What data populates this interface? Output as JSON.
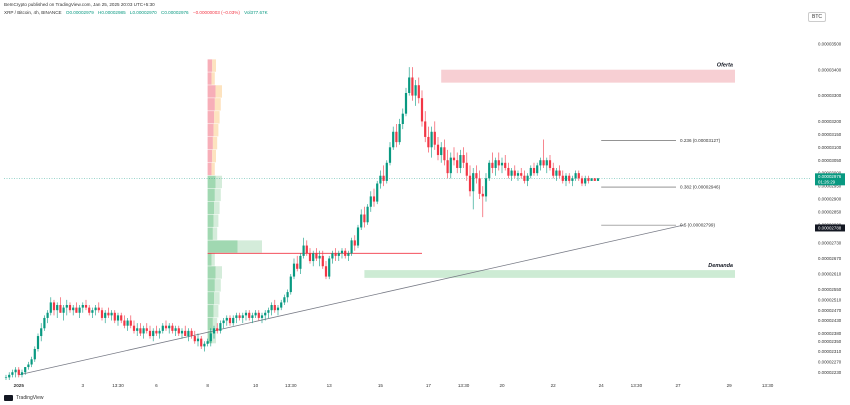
{
  "header": {
    "line1": "BeInCrypto published on TradingView.com, Jan 25, 2025 20:03 UTC+5:30",
    "symbol": "XRP / Bitcoin, 4h, BINANCE",
    "open": "O0.00002979",
    "high": "H0.00002985",
    "low": "L0.00002970",
    "close": "C0.00002976",
    "change": "−0.00000003 (−0.03%)",
    "vol": "Vol377.67K",
    "currency": "BTC"
  },
  "branding": {
    "logo_text": "TradingView"
  },
  "colors": {
    "up": "#089981",
    "down": "#f23645",
    "supply": "#f7cfd3",
    "demand": "#cdebd4",
    "trend": "#787b86"
  },
  "chart_data": {
    "type": "candlestick",
    "title": "XRP / Bitcoin, 4h, BINANCE",
    "yrange": [
      2.2e-05,
      3.6e-05
    ],
    "y_ticks": [
      "0.00003500",
      "0.00003400",
      "0.00003300",
      "0.00003200",
      "0.00003150",
      "0.00003100",
      "0.00003050",
      "0.00003000",
      "0.00002950",
      "0.00002900",
      "0.00002850",
      "0.00002800",
      "0.00002730",
      "0.00002670",
      "0.00002610",
      "0.00002550",
      "0.00002510",
      "0.00002470",
      "0.00002430",
      "0.00002380",
      "0.00002350",
      "0.00002310",
      "0.00002270",
      "0.00002230"
    ],
    "x_ticks": [
      {
        "label": "2025",
        "i": 4
      },
      {
        "label": "3",
        "i": 24
      },
      {
        "label": "13:30",
        "i": 35
      },
      {
        "label": "6",
        "i": 47
      },
      {
        "label": "8",
        "i": 63
      },
      {
        "label": "10",
        "i": 78
      },
      {
        "label": "13:30",
        "i": 89
      },
      {
        "label": "13",
        "i": 101
      },
      {
        "label": "15",
        "i": 117
      },
      {
        "label": "17",
        "i": 132
      },
      {
        "label": "13:30",
        "i": 143
      },
      {
        "label": "20",
        "i": 155
      },
      {
        "label": "22",
        "i": 171
      },
      {
        "label": "24",
        "i": 186
      },
      {
        "label": "13:30",
        "i": 197
      },
      {
        "label": "27",
        "i": 210
      },
      {
        "label": "29",
        "i": 226
      },
      {
        "label": "13:30",
        "i": 238
      }
    ],
    "price_labels": {
      "last": "0.00002976",
      "countdown": "01:26:29",
      "other": "0.00002788"
    },
    "fib_levels": [
      {
        "label": "0.236 (0.00003127)",
        "value": 3.127e-05
      },
      {
        "label": "0.382 (0.00002946)",
        "value": 2.946e-05
      },
      {
        "label": "0.5 (0.00002799)",
        "value": 2.799e-05
      }
    ],
    "zones": [
      {
        "label": "Oferta",
        "top": 3.4e-05,
        "bottom": 3.35e-05
      },
      {
        "label": "Demanda",
        "top": 2.625e-05,
        "bottom": 2.595e-05
      }
    ],
    "trendline": {
      "from": {
        "i": 4,
        "v": 2.22e-05
      },
      "to": {
        "i": 212,
        "v": 2.8e-05
      }
    },
    "poc": {
      "v": 2.69e-05,
      "from_i": 63,
      "to_i": 130
    },
    "candles": [
      [
        2.21e-05,
        2.22e-05,
        2.2e-05,
        2.21e-05
      ],
      [
        2.21e-05,
        2.23e-05,
        2.2e-05,
        2.22e-05
      ],
      [
        2.22e-05,
        2.24e-05,
        2.21e-05,
        2.23e-05
      ],
      [
        2.23e-05,
        2.25e-05,
        2.21e-05,
        2.24e-05
      ],
      [
        2.24e-05,
        2.25e-05,
        2.21e-05,
        2.22e-05
      ],
      [
        2.22e-05,
        2.24e-05,
        2.21e-05,
        2.23e-05
      ],
      [
        2.23e-05,
        2.25e-05,
        2.22e-05,
        2.25e-05
      ],
      [
        2.25e-05,
        2.27e-05,
        2.24e-05,
        2.26e-05
      ],
      [
        2.26e-05,
        2.29e-05,
        2.25e-05,
        2.28e-05
      ],
      [
        2.28e-05,
        2.33e-05,
        2.27e-05,
        2.32e-05
      ],
      [
        2.32e-05,
        2.38e-05,
        2.31e-05,
        2.37e-05
      ],
      [
        2.37e-05,
        2.42e-05,
        2.35e-05,
        2.4e-05
      ],
      [
        2.4e-05,
        2.45e-05,
        2.39e-05,
        2.44e-05
      ],
      [
        2.44e-05,
        2.47e-05,
        2.42e-05,
        2.46e-05
      ],
      [
        2.46e-05,
        2.52e-05,
        2.45e-05,
        2.5e-05
      ],
      [
        2.5e-05,
        2.51e-05,
        2.45e-05,
        2.47e-05
      ],
      [
        2.47e-05,
        2.5e-05,
        2.44e-05,
        2.49e-05
      ],
      [
        2.49e-05,
        2.52e-05,
        2.46e-05,
        2.46e-05
      ],
      [
        2.46e-05,
        2.49e-05,
        2.43e-05,
        2.48e-05
      ],
      [
        2.48e-05,
        2.51e-05,
        2.45e-05,
        2.49e-05
      ],
      [
        2.49e-05,
        2.5e-05,
        2.46e-05,
        2.47e-05
      ],
      [
        2.47e-05,
        2.49e-05,
        2.45e-05,
        2.48e-05
      ],
      [
        2.48e-05,
        2.5e-05,
        2.46e-05,
        2.46e-05
      ],
      [
        2.46e-05,
        2.49e-05,
        2.44e-05,
        2.48e-05
      ],
      [
        2.48e-05,
        2.5e-05,
        2.46e-05,
        2.49e-05
      ],
      [
        2.49e-05,
        2.51e-05,
        2.47e-05,
        2.48e-05
      ],
      [
        2.48e-05,
        2.49e-05,
        2.45e-05,
        2.46e-05
      ],
      [
        2.46e-05,
        2.48e-05,
        2.44e-05,
        2.47e-05
      ],
      [
        2.47e-05,
        2.49e-05,
        2.45e-05,
        2.48e-05
      ],
      [
        2.48e-05,
        2.5e-05,
        2.46e-05,
        2.47e-05
      ],
      [
        2.47e-05,
        2.48e-05,
        2.43e-05,
        2.44e-05
      ],
      [
        2.44e-05,
        2.47e-05,
        2.42e-05,
        2.46e-05
      ],
      [
        2.46e-05,
        2.48e-05,
        2.44e-05,
        2.45e-05
      ],
      [
        2.45e-05,
        2.47e-05,
        2.43e-05,
        2.46e-05
      ],
      [
        2.46e-05,
        2.47e-05,
        2.42e-05,
        2.43e-05
      ],
      [
        2.43e-05,
        2.46e-05,
        2.41e-05,
        2.45e-05
      ],
      [
        2.45e-05,
        2.46e-05,
        2.42e-05,
        2.43e-05
      ],
      [
        2.43e-05,
        2.45e-05,
        2.4e-05,
        2.41e-05
      ],
      [
        2.41e-05,
        2.44e-05,
        2.39e-05,
        2.43e-05
      ],
      [
        2.43e-05,
        2.45e-05,
        2.4e-05,
        2.41e-05
      ],
      [
        2.41e-05,
        2.43e-05,
        2.38e-05,
        2.39e-05
      ],
      [
        2.39e-05,
        2.42e-05,
        2.37e-05,
        2.4e-05
      ],
      [
        2.4e-05,
        2.42e-05,
        2.37e-05,
        2.38e-05
      ],
      [
        2.38e-05,
        2.41e-05,
        2.36e-05,
        2.4e-05
      ],
      [
        2.4e-05,
        2.42e-05,
        2.38e-05,
        2.39e-05
      ],
      [
        2.39e-05,
        2.41e-05,
        2.36e-05,
        2.37e-05
      ],
      [
        2.37e-05,
        2.4e-05,
        2.35e-05,
        2.39e-05
      ],
      [
        2.39e-05,
        2.41e-05,
        2.37e-05,
        2.38e-05
      ],
      [
        2.38e-05,
        2.4e-05,
        2.36e-05,
        2.39e-05
      ],
      [
        2.39e-05,
        2.42e-05,
        2.38e-05,
        2.41e-05
      ],
      [
        2.41e-05,
        2.43e-05,
        2.39e-05,
        2.4e-05
      ],
      [
        2.4e-05,
        2.42e-05,
        2.38e-05,
        2.41e-05
      ],
      [
        2.41e-05,
        2.42e-05,
        2.38e-05,
        2.39e-05
      ],
      [
        2.39e-05,
        2.41e-05,
        2.37e-05,
        2.4e-05
      ],
      [
        2.4e-05,
        2.41e-05,
        2.37e-05,
        2.38e-05
      ],
      [
        2.38e-05,
        2.4e-05,
        2.36e-05,
        2.39e-05
      ],
      [
        2.39e-05,
        2.41e-05,
        2.37e-05,
        2.37e-05
      ],
      [
        2.37e-05,
        2.4e-05,
        2.35e-05,
        2.39e-05
      ],
      [
        2.39e-05,
        2.4e-05,
        2.36e-05,
        2.37e-05
      ],
      [
        2.37e-05,
        2.39e-05,
        2.34e-05,
        2.35e-05
      ],
      [
        2.35e-05,
        2.38e-05,
        2.33e-05,
        2.36e-05
      ],
      [
        2.36e-05,
        2.37e-05,
        2.32e-05,
        2.33e-05
      ],
      [
        2.33e-05,
        2.35e-05,
        2.31e-05,
        2.34e-05
      ],
      [
        2.34e-05,
        2.36e-05,
        2.33e-05,
        2.35e-05
      ],
      [
        2.35e-05,
        2.4e-05,
        2.33e-05,
        2.38e-05
      ],
      [
        2.38e-05,
        2.41e-05,
        2.36e-05,
        2.4e-05
      ],
      [
        2.4e-05,
        2.42e-05,
        2.38e-05,
        2.39e-05
      ],
      [
        2.39e-05,
        2.43e-05,
        2.38e-05,
        2.42e-05
      ],
      [
        2.42e-05,
        2.44e-05,
        2.4e-05,
        2.43e-05
      ],
      [
        2.43e-05,
        2.45e-05,
        2.41e-05,
        2.44e-05
      ],
      [
        2.44e-05,
        2.45e-05,
        2.41e-05,
        2.42e-05
      ],
      [
        2.42e-05,
        2.45e-05,
        2.41e-05,
        2.44e-05
      ],
      [
        2.44e-05,
        2.46e-05,
        2.42e-05,
        2.45e-05
      ],
      [
        2.45e-05,
        2.46e-05,
        2.43e-05,
        2.44e-05
      ],
      [
        2.44e-05,
        2.46e-05,
        2.42e-05,
        2.45e-05
      ],
      [
        2.45e-05,
        2.47e-05,
        2.43e-05,
        2.46e-05
      ],
      [
        2.46e-05,
        2.47e-05,
        2.43e-05,
        2.44e-05
      ],
      [
        2.44e-05,
        2.46e-05,
        2.42e-05,
        2.45e-05
      ],
      [
        2.45e-05,
        2.47e-05,
        2.44e-05,
        2.46e-05
      ],
      [
        2.46e-05,
        2.47e-05,
        2.43e-05,
        2.44e-05
      ],
      [
        2.44e-05,
        2.46e-05,
        2.42e-05,
        2.45e-05
      ],
      [
        2.45e-05,
        2.47e-05,
        2.43e-05,
        2.46e-05
      ],
      [
        2.46e-05,
        2.48e-05,
        2.44e-05,
        2.47e-05
      ],
      [
        2.47e-05,
        2.5e-05,
        2.45e-05,
        2.49e-05
      ],
      [
        2.49e-05,
        2.51e-05,
        2.46e-05,
        2.47e-05
      ],
      [
        2.47e-05,
        2.49e-05,
        2.45e-05,
        2.48e-05
      ],
      [
        2.48e-05,
        2.51e-05,
        2.47e-05,
        2.5e-05
      ],
      [
        2.5e-05,
        2.53e-05,
        2.49e-05,
        2.52e-05
      ],
      [
        2.52e-05,
        2.55e-05,
        2.5e-05,
        2.54e-05
      ],
      [
        2.54e-05,
        2.61e-05,
        2.53e-05,
        2.6e-05
      ],
      [
        2.6e-05,
        2.67e-05,
        2.59e-05,
        2.65e-05
      ],
      [
        2.65e-05,
        2.68e-05,
        2.62e-05,
        2.63e-05
      ],
      [
        2.63e-05,
        2.69e-05,
        2.61e-05,
        2.68e-05
      ],
      [
        2.68e-05,
        2.75e-05,
        2.67e-05,
        2.72e-05
      ],
      [
        2.72e-05,
        2.74e-05,
        2.68e-05,
        2.69e-05
      ],
      [
        2.69e-05,
        2.71e-05,
        2.65e-05,
        2.66e-05
      ],
      [
        2.66e-05,
        2.7e-05,
        2.64e-05,
        2.69e-05
      ],
      [
        2.69e-05,
        2.71e-05,
        2.66e-05,
        2.67e-05
      ],
      [
        2.67e-05,
        2.7e-05,
        2.64e-05,
        2.68e-05
      ],
      [
        2.68e-05,
        2.7e-05,
        2.63e-05,
        2.64e-05
      ],
      [
        2.64e-05,
        2.66e-05,
        2.59e-05,
        2.6e-05
      ],
      [
        2.6e-05,
        2.68e-05,
        2.59e-05,
        2.67e-05
      ],
      [
        2.67e-05,
        2.7e-05,
        2.65e-05,
        2.69e-05
      ],
      [
        2.69e-05,
        2.71e-05,
        2.66e-05,
        2.68e-05
      ],
      [
        2.68e-05,
        2.7e-05,
        2.66e-05,
        2.69e-05
      ],
      [
        2.69e-05,
        2.71e-05,
        2.67e-05,
        2.7e-05
      ],
      [
        2.7e-05,
        2.71e-05,
        2.67e-05,
        2.68e-05
      ],
      [
        2.68e-05,
        2.7e-05,
        2.66e-05,
        2.69e-05
      ],
      [
        2.69e-05,
        2.75e-05,
        2.68e-05,
        2.74e-05
      ],
      [
        2.74e-05,
        2.76e-05,
        2.7e-05,
        2.72e-05
      ],
      [
        2.72e-05,
        2.8e-05,
        2.71e-05,
        2.79e-05
      ],
      [
        2.79e-05,
        2.86e-05,
        2.78e-05,
        2.84e-05
      ],
      [
        2.84e-05,
        2.87e-05,
        2.79e-05,
        2.81e-05
      ],
      [
        2.81e-05,
        2.88e-05,
        2.8e-05,
        2.87e-05
      ],
      [
        2.87e-05,
        2.93e-05,
        2.85e-05,
        2.91e-05
      ],
      [
        2.91e-05,
        2.94e-05,
        2.87e-05,
        2.89e-05
      ],
      [
        2.89e-05,
        2.97e-05,
        2.88e-05,
        2.96e-05
      ],
      [
        2.96e-05,
        3.01e-05,
        2.94e-05,
        2.99e-05
      ],
      [
        2.99e-05,
        3.03e-05,
        2.95e-05,
        2.97e-05
      ],
      [
        2.97e-05,
        3.05e-05,
        2.96e-05,
        3.04e-05
      ],
      [
        3.04e-05,
        3.12e-05,
        3.03e-05,
        3.1e-05
      ],
      [
        3.1e-05,
        3.18e-05,
        3.09e-05,
        3.16e-05
      ],
      [
        3.16e-05,
        3.19e-05,
        3.1e-05,
        3.12e-05
      ],
      [
        3.12e-05,
        3.21e-05,
        3.11e-05,
        3.19e-05
      ],
      [
        3.19e-05,
        3.25e-05,
        3.17e-05,
        3.23e-05
      ],
      [
        3.23e-05,
        3.33e-05,
        3.22e-05,
        3.31e-05
      ],
      [
        3.31e-05,
        3.41e-05,
        3.3e-05,
        3.37e-05
      ],
      [
        3.37e-05,
        3.41e-05,
        3.28e-05,
        3.3e-05
      ],
      [
        3.3e-05,
        3.36e-05,
        3.26e-05,
        3.34e-05
      ],
      [
        3.34e-05,
        3.37e-05,
        3.27e-05,
        3.29e-05
      ],
      [
        3.29e-05,
        3.32e-05,
        3.18e-05,
        3.2e-05
      ],
      [
        3.2e-05,
        3.24e-05,
        3.12e-05,
        3.14e-05
      ],
      [
        3.14e-05,
        3.18e-05,
        3.08e-05,
        3.1e-05
      ],
      [
        3.1e-05,
        3.18e-05,
        3.06e-05,
        3.16e-05
      ],
      [
        3.16e-05,
        3.2e-05,
        3.09e-05,
        3.11e-05
      ],
      [
        3.11e-05,
        3.14e-05,
        3.05e-05,
        3.07e-05
      ],
      [
        3.07e-05,
        3.12e-05,
        3.04e-05,
        3.1e-05
      ],
      [
        3.1e-05,
        3.13e-05,
        3.03e-05,
        3.05e-05
      ],
      [
        3.05e-05,
        3.09e-05,
        2.98e-05,
        3e-05
      ],
      [
        3e-05,
        3.08e-05,
        2.98e-05,
        3.06e-05
      ],
      [
        3.06e-05,
        3.1e-05,
        3.03e-05,
        3.05e-05
      ],
      [
        3.05e-05,
        3.08e-05,
        3e-05,
        3.02e-05
      ],
      [
        3.02e-05,
        3.09e-05,
        3e-05,
        3.07e-05
      ],
      [
        3.07e-05,
        3.1e-05,
        3.02e-05,
        3.04e-05
      ],
      [
        3.04e-05,
        3.08e-05,
        2.97e-05,
        2.99e-05
      ],
      [
        2.99e-05,
        3.03e-05,
        2.91e-05,
        2.93e-05
      ],
      [
        2.93e-05,
        3.02e-05,
        2.86e-05,
        3e-05
      ],
      [
        3e-05,
        3.03e-05,
        2.96e-05,
        2.98e-05
      ],
      [
        2.98e-05,
        3.01e-05,
        2.9e-05,
        2.92e-05
      ],
      [
        2.92e-05,
        2.95e-05,
        2.83e-05,
        2.91e-05
      ],
      [
        2.91e-05,
        3e-05,
        2.89e-05,
        2.98e-05
      ],
      [
        2.98e-05,
        3.05e-05,
        2.97e-05,
        3.04e-05
      ],
      [
        3.04e-05,
        3.08e-05,
        3e-05,
        3.02e-05
      ],
      [
        3.02e-05,
        3.06e-05,
        2.99e-05,
        3.05e-05
      ],
      [
        3.05e-05,
        3.08e-05,
        3.01e-05,
        3.03e-05
      ],
      [
        3.03e-05,
        3.06e-05,
        3e-05,
        3.04e-05
      ],
      [
        3.04e-05,
        3.07e-05,
        3.01e-05,
        3.02e-05
      ],
      [
        3.02e-05,
        3.04e-05,
        2.98e-05,
        2.99e-05
      ],
      [
        2.99e-05,
        3.02e-05,
        2.97e-05,
        3.01e-05
      ],
      [
        3.01e-05,
        3.03e-05,
        2.98e-05,
        2.99e-05
      ],
      [
        2.99e-05,
        3.01e-05,
        2.97e-05,
        3e-05
      ],
      [
        3e-05,
        3.02e-05,
        2.98e-05,
        2.99e-05
      ],
      [
        2.99e-05,
        3.01e-05,
        2.96e-05,
        2.97e-05
      ],
      [
        2.97e-05,
        3e-05,
        2.95e-05,
        2.99e-05
      ],
      [
        2.99e-05,
        3.03e-05,
        2.98e-05,
        3.02e-05
      ],
      [
        3.02e-05,
        3.04e-05,
        2.99e-05,
        3e-05
      ],
      [
        3e-05,
        3.04e-05,
        2.99e-05,
        3.03e-05
      ],
      [
        3.03e-05,
        3.06e-05,
        3.01e-05,
        3.05e-05
      ],
      [
        3.05e-05,
        3.13e-05,
        3.02e-05,
        3.03e-05
      ],
      [
        3.03e-05,
        3.06e-05,
        3e-05,
        3.05e-05
      ],
      [
        3.05e-05,
        3.07e-05,
        3.01e-05,
        3.02e-05
      ],
      [
        3.02e-05,
        3.04e-05,
        2.98e-05,
        2.99e-05
      ],
      [
        2.99e-05,
        3.02e-05,
        2.97e-05,
        3.01e-05
      ],
      [
        3.01e-05,
        3.03e-05,
        2.98e-05,
        2.99e-05
      ],
      [
        2.99e-05,
        3.01e-05,
        2.96e-05,
        2.97e-05
      ],
      [
        2.97e-05,
        3e-05,
        2.95e-05,
        2.99e-05
      ],
      [
        2.99e-05,
        3e-05,
        2.96e-05,
        2.97e-05
      ],
      [
        2.97e-05,
        2.99e-05,
        2.95e-05,
        2.98e-05
      ],
      [
        2.98e-05,
        3.01e-05,
        2.97e-05,
        3e-05
      ],
      [
        3e-05,
        3.01e-05,
        2.97e-05,
        2.98e-05
      ],
      [
        2.98e-05,
        2.99e-05,
        2.95e-05,
        2.96e-05
      ],
      [
        2.96e-05,
        2.99e-05,
        2.95e-05,
        2.98e-05
      ],
      [
        2.98e-05,
        2.99e-05,
        2.96e-05,
        2.97e-05
      ],
      [
        2.97e-05,
        2.98e-05,
        2.97e-05,
        2.98e-05
      ],
      [
        2.98e-05,
        2.98e-05,
        2.97e-05,
        2.97e-05
      ],
      [
        2.97e-05,
        2.98e-05,
        2.97e-05,
        2.98e-05
      ]
    ]
  }
}
